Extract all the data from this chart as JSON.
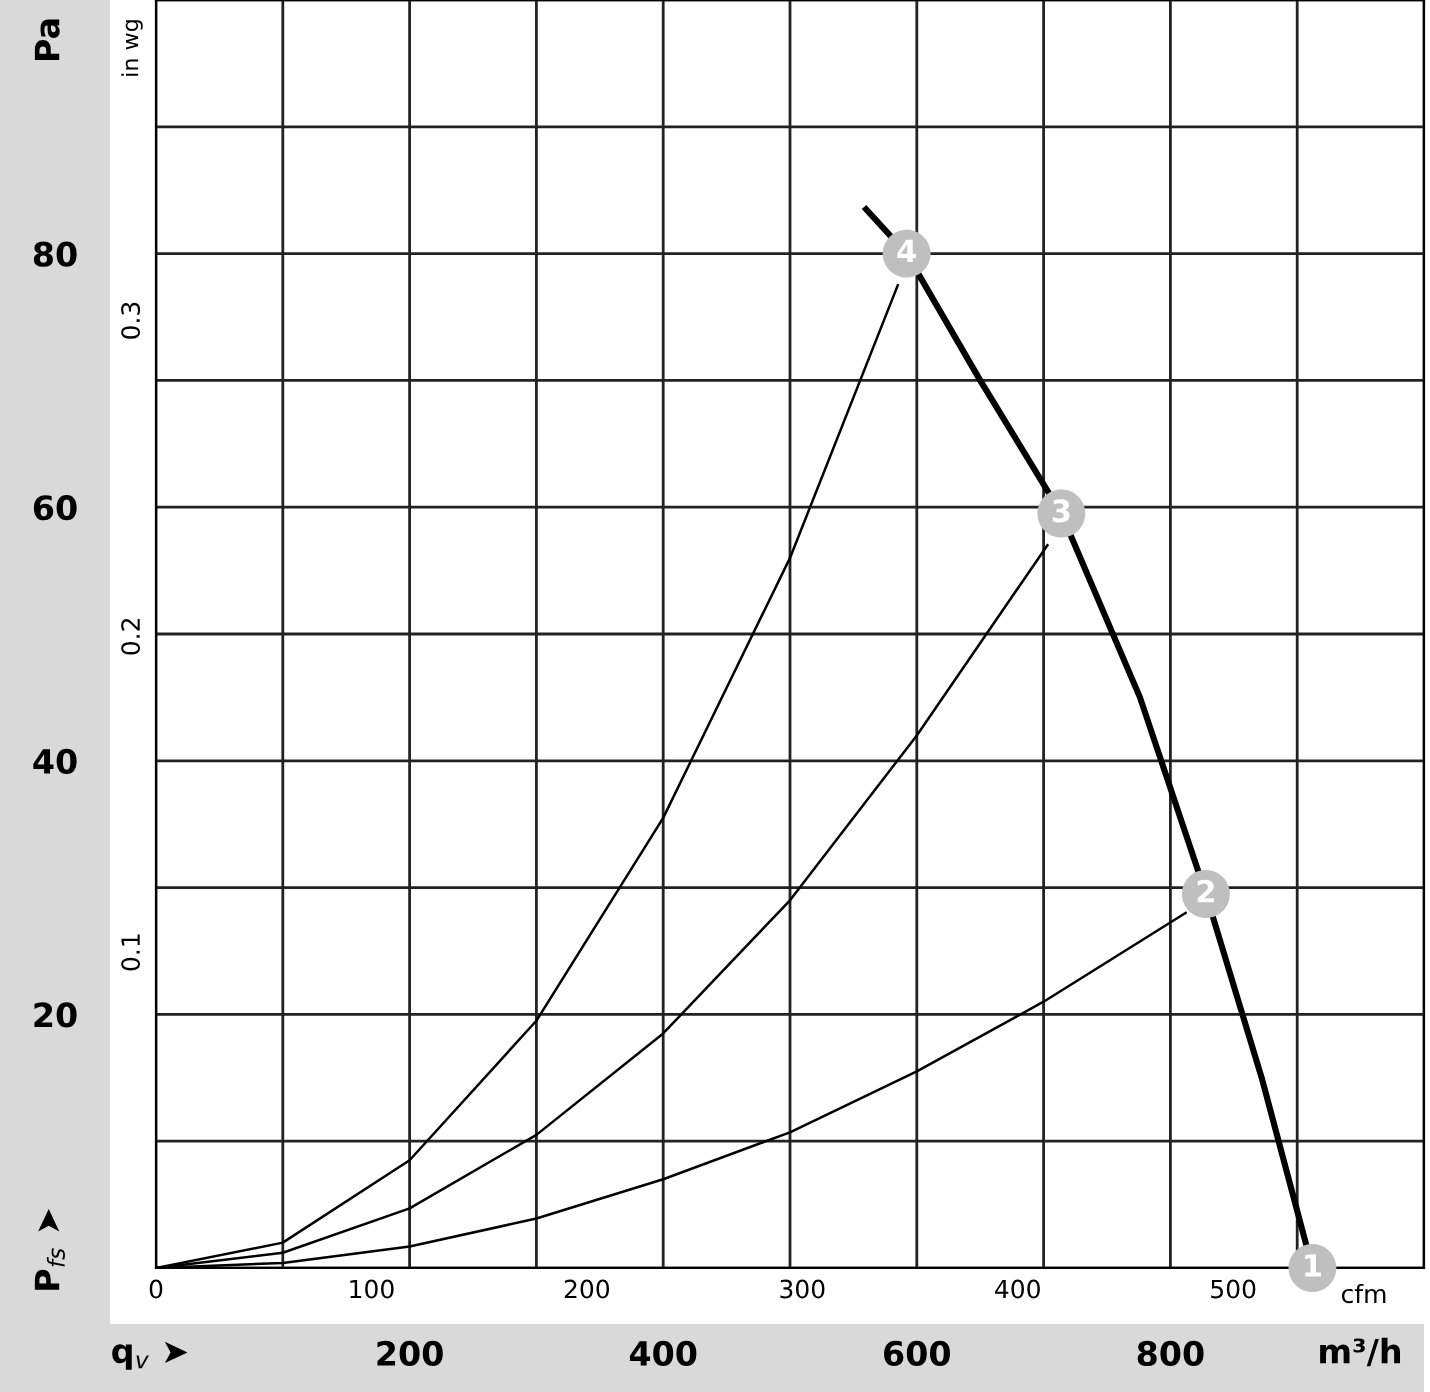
{
  "chart_data": {
    "type": "line",
    "xlabel": "m³/h",
    "ylabel": "Pa",
    "x2label": "cfm",
    "y2label": "in wg",
    "xlim": [
      0,
      1000
    ],
    "ylim": [
      0,
      100
    ],
    "xticks": [
      {
        "value": 0,
        "label": null
      },
      {
        "value": 100,
        "label": null
      },
      200,
      {
        "value": 300,
        "label": null
      },
      400,
      {
        "value": 500,
        "label": null
      },
      600,
      {
        "value": 700,
        "label": null
      },
      800,
      {
        "value": 900,
        "label": null
      },
      {
        "value": 1000,
        "label": null
      }
    ],
    "yticks": [
      {
        "value": 0,
        "label": null
      },
      {
        "value": 10,
        "label": null
      },
      20,
      {
        "value": 30,
        "label": null
      },
      40,
      {
        "value": 50,
        "label": null
      },
      60,
      {
        "value": 70,
        "label": null
      },
      80,
      {
        "value": 90,
        "label": null
      },
      {
        "value": 100,
        "label": null
      }
    ],
    "x2lim": [
      0,
      588.6
    ],
    "x2ticks": [
      0,
      100,
      200,
      300,
      400,
      500
    ],
    "y2lim": [
      0,
      0.4015
    ],
    "y2ticks": [
      0.1,
      0.2,
      0.3
    ],
    "grid": true,
    "series": [
      {
        "color": "#000000",
        "x": [
          560,
          592,
          650,
          714,
          776,
          828,
          872,
          912
        ],
        "values": [
          83.5,
          80,
          70,
          59.5,
          45,
          29.5,
          15,
          0
        ]
      },
      {
        "color": "#000000",
        "x": [
          0,
          100,
          200,
          300,
          400,
          500,
          585
        ],
        "values": [
          0,
          2,
          8.5,
          19.5,
          35.5,
          56,
          77.5
        ]
      },
      {
        "color": "#000000",
        "x": [
          0,
          100,
          200,
          300,
          400,
          500,
          600,
          703
        ],
        "values": [
          0,
          1.2,
          4.7,
          10.5,
          18.5,
          29,
          42,
          57
        ]
      },
      {
        "color": "#000000",
        "x": [
          0,
          100,
          200,
          300,
          400,
          500,
          600,
          700,
          812
        ],
        "values": [
          0,
          0.4,
          1.7,
          3.9,
          7,
          10.7,
          15.5,
          21,
          28
        ]
      }
    ],
    "annotations": [
      {
        "text": "1",
        "x": 912,
        "y": 0
      },
      {
        "text": "2",
        "x": 828,
        "y": 29.5
      },
      {
        "text": "3",
        "x": 714,
        "y": 59.5
      },
      {
        "text": "4",
        "x": 592,
        "y": 80
      },
      "P$_{fs}$ ➤",
      "q$_{v}$ ➤"
    ]
  }
}
